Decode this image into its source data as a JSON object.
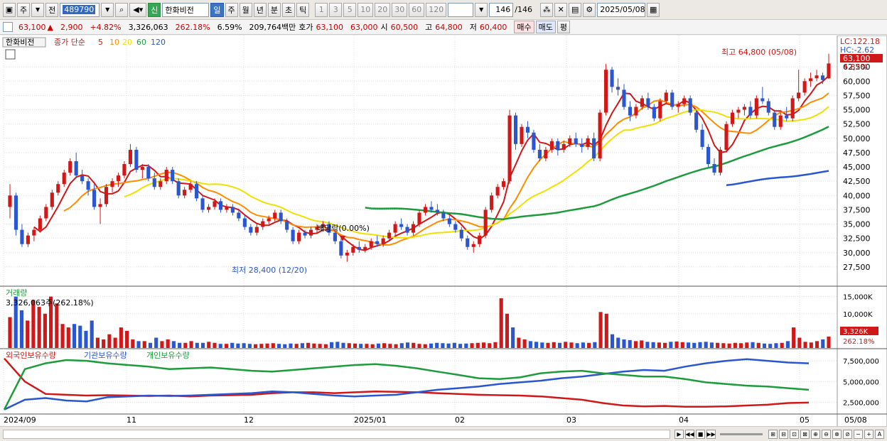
{
  "toolbar": {
    "period_type": "주",
    "prev": "전",
    "code": "489790",
    "stock_badge": "신",
    "stock_name": "한화비전",
    "periods": [
      "일",
      "주",
      "월",
      "년",
      "분",
      "초",
      "틱"
    ],
    "selected_period": "일",
    "counts": [
      "1",
      "3",
      "5",
      "10",
      "20",
      "30",
      "60",
      "120"
    ],
    "page_count": "146",
    "page_total": "/146",
    "date": "2025/05/08"
  },
  "quote": {
    "price": "63,100",
    "arrow": "▲",
    "change": "2,900",
    "change_pct": "+4.82%",
    "volume": "3,326,063",
    "vol_ratio": "262.18%",
    "turnover": "6.59%",
    "amount": "209,764백만",
    "bid_label": "호가",
    "bid1": "63,100",
    "bid2": "63,000",
    "open_label": "시",
    "open": "60,500",
    "high_label": "고",
    "high": "64,800",
    "low_label": "저",
    "low": "60,400",
    "buy_btn": "매수",
    "sell_btn": "매도",
    "eval_btn": "평"
  },
  "legend": {
    "name": "한화비전",
    "ma_label": "종가 단순",
    "ma": [
      "5",
      "10",
      "20",
      "60",
      "120"
    ],
    "ma_colors": [
      "#d01818",
      "#ff8c00",
      "#f0e000",
      "#1c9c3c",
      "#2a56d0"
    ]
  },
  "markers": {
    "lc": "LC:122.18",
    "hc": "HC:-2.62",
    "price_tag": "63,100",
    "pct_tag": "4.82%",
    "high_note": "최고 64,800 (05/08)",
    "low_note": "최저 28,400 (12/20)",
    "dividend_note": "배당락(0.00%)"
  },
  "volume_panel": {
    "title": "거래량",
    "info": "3,326,063주(262.18%)",
    "tag": "3,326K",
    "pct_tag": "262.18%"
  },
  "holdings_panel": {
    "series": [
      "외국인보유수량",
      "기관보유수량",
      "개인보유수량"
    ],
    "colors": [
      "#d01818",
      "#2a56d0",
      "#1c9c3c"
    ]
  },
  "x_labels": [
    "2024/09",
    "11",
    "12",
    "2025/01",
    "02",
    "03",
    "04",
    "05",
    "05/08"
  ],
  "chart_data": [
    {
      "type": "candlestick",
      "y_ticks": [
        27500,
        30000,
        32500,
        35000,
        37500,
        40000,
        42500,
        45000,
        47500,
        50000,
        52500,
        55000,
        57500,
        60000,
        62500
      ],
      "ylim": [
        26000,
        66000
      ],
      "candles": [
        [
          38000,
          42000,
          36000,
          40000
        ],
        [
          40000,
          40500,
          33000,
          34000
        ],
        [
          34000,
          35000,
          31000,
          31500
        ],
        [
          31500,
          33500,
          31000,
          33000
        ],
        [
          33000,
          34500,
          32000,
          34000
        ],
        [
          34000,
          36500,
          33500,
          36000
        ],
        [
          36000,
          38500,
          35500,
          38000
        ],
        [
          38000,
          41000,
          37500,
          40500
        ],
        [
          40500,
          42500,
          40000,
          42000
        ],
        [
          42000,
          44500,
          41500,
          44000
        ],
        [
          44000,
          46500,
          43500,
          46000
        ],
        [
          46000,
          47500,
          43000,
          43500
        ],
        [
          43500,
          44500,
          42000,
          42500
        ],
        [
          42500,
          43000,
          40000,
          41000
        ],
        [
          41000,
          42000,
          37500,
          38000
        ],
        [
          38000,
          39500,
          35000,
          38500
        ],
        [
          38500,
          42000,
          38000,
          41500
        ],
        [
          41500,
          43000,
          40500,
          42500
        ],
        [
          42500,
          44000,
          41500,
          43500
        ],
        [
          43500,
          46000,
          43000,
          45500
        ],
        [
          45500,
          49000,
          45000,
          48000
        ],
        [
          48000,
          48500,
          44000,
          44500
        ],
        [
          44500,
          45500,
          43000,
          45000
        ],
        [
          45000,
          45500,
          42500,
          43000
        ],
        [
          43000,
          44000,
          41000,
          41500
        ],
        [
          41500,
          43000,
          41000,
          42500
        ],
        [
          42500,
          45000,
          42000,
          44500
        ],
        [
          44500,
          45000,
          42000,
          42500
        ],
        [
          42500,
          43000,
          39500,
          40000
        ],
        [
          40000,
          41500,
          39500,
          41000
        ],
        [
          41000,
          42500,
          40500,
          42000
        ],
        [
          42000,
          42500,
          39000,
          39500
        ],
        [
          39500,
          40000,
          37000,
          37500
        ],
        [
          37500,
          38500,
          37000,
          38000
        ],
        [
          38000,
          39500,
          37500,
          39000
        ],
        [
          39000,
          39500,
          37000,
          37500
        ],
        [
          37500,
          38500,
          37000,
          38000
        ],
        [
          38000,
          38500,
          36500,
          37000
        ],
        [
          37000,
          37500,
          35500,
          36000
        ],
        [
          36000,
          36500,
          34000,
          34500
        ],
        [
          34500,
          35000,
          33000,
          33500
        ],
        [
          33500,
          35000,
          33000,
          34500
        ],
        [
          34500,
          36000,
          34000,
          35500
        ],
        [
          35500,
          36500,
          35000,
          36000
        ],
        [
          36000,
          37500,
          35500,
          37000
        ],
        [
          37000,
          37500,
          35000,
          35500
        ],
        [
          35500,
          36000,
          33500,
          34000
        ],
        [
          34000,
          34500,
          31500,
          32000
        ],
        [
          32000,
          34000,
          31500,
          33500
        ],
        [
          33500,
          34000,
          32500,
          33000
        ],
        [
          33000,
          34500,
          32500,
          34000
        ],
        [
          34000,
          35000,
          33500,
          34500
        ],
        [
          34500,
          35500,
          34000,
          35000
        ],
        [
          35000,
          35500,
          33000,
          33500
        ],
        [
          33500,
          34000,
          31500,
          32000
        ],
        [
          32000,
          32500,
          29000,
          29500
        ],
        [
          29500,
          30500,
          28400,
          30000
        ],
        [
          30000,
          31500,
          29500,
          31000
        ],
        [
          31000,
          32000,
          30000,
          30500
        ],
        [
          30500,
          31500,
          30000,
          31000
        ],
        [
          31000,
          32500,
          30500,
          32000
        ],
        [
          32000,
          33000,
          31000,
          31500
        ],
        [
          31500,
          33000,
          31000,
          32500
        ],
        [
          32500,
          34000,
          32000,
          33500
        ],
        [
          33500,
          35500,
          33000,
          35000
        ],
        [
          35000,
          36000,
          34000,
          34500
        ],
        [
          34500,
          35000,
          33000,
          33500
        ],
        [
          33500,
          35500,
          33000,
          35000
        ],
        [
          35000,
          37500,
          34500,
          37000
        ],
        [
          37000,
          38500,
          36500,
          38000
        ],
        [
          38000,
          39000,
          37000,
          37500
        ],
        [
          37500,
          38500,
          36500,
          37000
        ],
        [
          37000,
          37500,
          35500,
          36000
        ],
        [
          36000,
          36500,
          34500,
          35000
        ],
        [
          35000,
          35500,
          33500,
          34000
        ],
        [
          34000,
          34500,
          32000,
          32500
        ],
        [
          32500,
          33000,
          30500,
          31000
        ],
        [
          31000,
          32000,
          30000,
          31500
        ],
        [
          31500,
          33500,
          31000,
          33000
        ],
        [
          33000,
          38000,
          32500,
          37500
        ],
        [
          37500,
          40500,
          37000,
          40000
        ],
        [
          40000,
          42000,
          39500,
          41500
        ],
        [
          41500,
          43000,
          41000,
          42500
        ],
        [
          42500,
          55000,
          42000,
          54000
        ],
        [
          54000,
          54500,
          48000,
          49000
        ],
        [
          49000,
          52500,
          48500,
          52000
        ],
        [
          52000,
          53000,
          50000,
          51000
        ],
        [
          51000,
          51500,
          47500,
          48000
        ],
        [
          48000,
          49000,
          46000,
          46500
        ],
        [
          46500,
          48500,
          46000,
          48000
        ],
        [
          48000,
          50000,
          47500,
          49500
        ],
        [
          49500,
          50000,
          47000,
          48000
        ],
        [
          48000,
          49500,
          47500,
          49000
        ],
        [
          49000,
          50500,
          48500,
          50000
        ],
        [
          50000,
          51000,
          48500,
          49000
        ],
        [
          49000,
          50000,
          47500,
          48500
        ],
        [
          48500,
          50500,
          48000,
          50000
        ],
        [
          50000,
          51000,
          46000,
          46500
        ],
        [
          46500,
          55000,
          46000,
          54500
        ],
        [
          54500,
          63000,
          54000,
          62000
        ],
        [
          62000,
          62500,
          58000,
          59000
        ],
        [
          59000,
          60500,
          57500,
          58500
        ],
        [
          58500,
          59500,
          55000,
          55500
        ],
        [
          55500,
          56500,
          53000,
          54000
        ],
        [
          54000,
          56000,
          53500,
          55500
        ],
        [
          55500,
          57500,
          55000,
          57000
        ],
        [
          57000,
          58000,
          55000,
          55500
        ],
        [
          55500,
          56000,
          53000,
          53500
        ],
        [
          53500,
          57000,
          53000,
          56500
        ],
        [
          56500,
          58500,
          56000,
          58000
        ],
        [
          58000,
          58500,
          55000,
          55500
        ],
        [
          55500,
          56500,
          54500,
          56000
        ],
        [
          56000,
          57500,
          55500,
          57000
        ],
        [
          57000,
          57500,
          54000,
          54500
        ],
        [
          54500,
          55000,
          51000,
          51500
        ],
        [
          51500,
          52500,
          48000,
          48500
        ],
        [
          48500,
          49000,
          45000,
          45500
        ],
        [
          45500,
          46500,
          43500,
          44000
        ],
        [
          44000,
          48500,
          43500,
          48000
        ],
        [
          48000,
          53000,
          47500,
          52500
        ],
        [
          52500,
          55000,
          52000,
          54500
        ],
        [
          54500,
          55500,
          53500,
          55000
        ],
        [
          55000,
          56000,
          54000,
          55500
        ],
        [
          55500,
          56500,
          53500,
          54000
        ],
        [
          54000,
          57500,
          53500,
          57000
        ],
        [
          57000,
          59000,
          56000,
          56500
        ],
        [
          56500,
          57000,
          54000,
          54500
        ],
        [
          54500,
          55000,
          51500,
          52000
        ],
        [
          52000,
          54500,
          51500,
          54000
        ],
        [
          54000,
          55500,
          53000,
          53500
        ],
        [
          53500,
          57500,
          53000,
          57000
        ],
        [
          57000,
          62000,
          56500,
          58000
        ],
        [
          58000,
          60500,
          57500,
          60000
        ],
        [
          60000,
          61500,
          59000,
          60500
        ],
        [
          60500,
          62000,
          60000,
          61000
        ],
        [
          61000,
          61500,
          59500,
          60200
        ],
        [
          60500,
          64800,
          60400,
          63100
        ]
      ]
    },
    {
      "type": "bar",
      "name": "거래량",
      "y_ticks": [
        5000,
        10000,
        15000
      ],
      "unit": "K",
      "y_tick_labels": [
        "5,000K",
        "10,000K",
        "15,000K"
      ],
      "ylim": [
        0,
        17000
      ],
      "values": [
        9000,
        15000,
        11000,
        8000,
        14000,
        12000,
        10000,
        15000,
        13000,
        7000,
        6000,
        7000,
        6500,
        5000,
        8000,
        3000,
        2500,
        4000,
        3000,
        6000,
        5000,
        2500,
        2000,
        2000,
        1500,
        3000,
        2000,
        2500,
        2000,
        1500,
        1500,
        2000,
        1500,
        1500,
        1800,
        1500,
        1200,
        1200,
        1500,
        1300,
        1400,
        1200,
        1100,
        1200,
        1300,
        1400,
        1200,
        1100,
        1300,
        1200,
        1400,
        1500,
        1300,
        1200,
        1100,
        1700,
        1800,
        1500,
        1400,
        1300,
        1200,
        1200,
        1100,
        1300,
        1400,
        1200,
        1100,
        1400,
        1600,
        1500,
        1200,
        1100,
        1300,
        1500,
        1400,
        1300,
        1500,
        1200,
        1300,
        1400,
        1500,
        1600,
        1400,
        1700,
        14500,
        10000,
        6000,
        3000,
        2500,
        2000,
        1800,
        1600,
        1500,
        1700,
        1500,
        1800,
        1600,
        1400,
        1600,
        1500,
        1700,
        10500,
        10000,
        4000,
        3000,
        2500,
        2300,
        2000,
        2200,
        1800,
        1700,
        1600,
        1500,
        1800,
        1900,
        1700,
        1600,
        1500,
        1700,
        1800,
        1600,
        1500,
        1400,
        1300,
        1500,
        1400,
        1600,
        1700,
        1500,
        1300,
        1200,
        1400,
        1500,
        2000,
        6000,
        3000,
        1800,
        1600,
        2000,
        2500,
        3326
      ]
    },
    {
      "type": "line",
      "name": "보유수량",
      "y_ticks": [
        2500000,
        5000000,
        7500000
      ],
      "y_tick_labels": [
        "2,500,000",
        "5,000,000",
        "7,500,000"
      ],
      "ylim": [
        1500000,
        8200000
      ],
      "series": [
        {
          "name": "외국인보유수량",
          "values": [
            7800000,
            5000000,
            3500000,
            3400000,
            3300000,
            3350000,
            3300000,
            3250000,
            3300000,
            3200000,
            3300000,
            3350000,
            3400000,
            3600000,
            3700000,
            3700000,
            3600000,
            3700000,
            3800000,
            3750000,
            3700000,
            3600000,
            3500000,
            3400000,
            3350000,
            3300000,
            3200000,
            3000000,
            2800000,
            2400000,
            2100000,
            2000000,
            2050000,
            1950000,
            1950000,
            2000000,
            2100000,
            2200000,
            2400000,
            2450000
          ]
        },
        {
          "name": "기관보유수량",
          "values": [
            1600000,
            2800000,
            3000000,
            2700000,
            2600000,
            3100000,
            3200000,
            3300000,
            3250000,
            3300000,
            3400000,
            3500000,
            3600000,
            3800000,
            3700000,
            3500000,
            3300000,
            3200000,
            3300000,
            3400000,
            3700000,
            4000000,
            4200000,
            4400000,
            4700000,
            4900000,
            5100000,
            5400000,
            5600000,
            5900000,
            6200000,
            6400000,
            6300000,
            6800000,
            7200000,
            7500000,
            7700000,
            7500000,
            7300000,
            7200000
          ]
        },
        {
          "name": "개인보유수량",
          "values": [
            1600000,
            6500000,
            7200000,
            7600000,
            7500000,
            7200000,
            7000000,
            6800000,
            6500000,
            6600000,
            6700000,
            6500000,
            6300000,
            6200000,
            6400000,
            6600000,
            6800000,
            7000000,
            7100000,
            6900000,
            6600000,
            6200000,
            5800000,
            5400000,
            5300000,
            5500000,
            6000000,
            6200000,
            6300000,
            6000000,
            5800000,
            5600000,
            5600000,
            5300000,
            4900000,
            4700000,
            4500000,
            4400000,
            4200000,
            4000000
          ]
        }
      ]
    }
  ]
}
